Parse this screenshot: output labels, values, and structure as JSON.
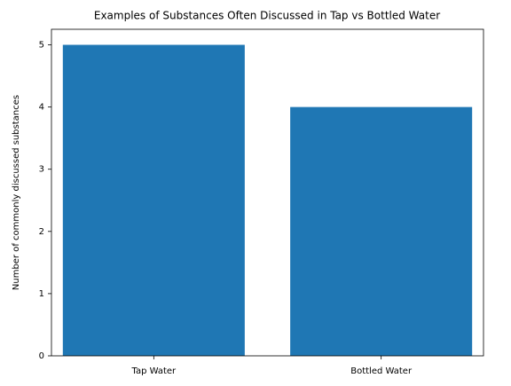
{
  "chart_data": {
    "type": "bar",
    "title": "Examples of Substances Often Discussed in Tap vs Bottled Water",
    "y_label": "Number of commonly discussed substances",
    "categories": [
      "Tap Water",
      "Bottled Water"
    ],
    "values": [
      5,
      4
    ],
    "color": "#1f77b4",
    "ylim": [
      0,
      5.25
    ],
    "yticks": [
      0,
      1,
      2,
      3,
      4,
      5
    ],
    "grid": false
  }
}
